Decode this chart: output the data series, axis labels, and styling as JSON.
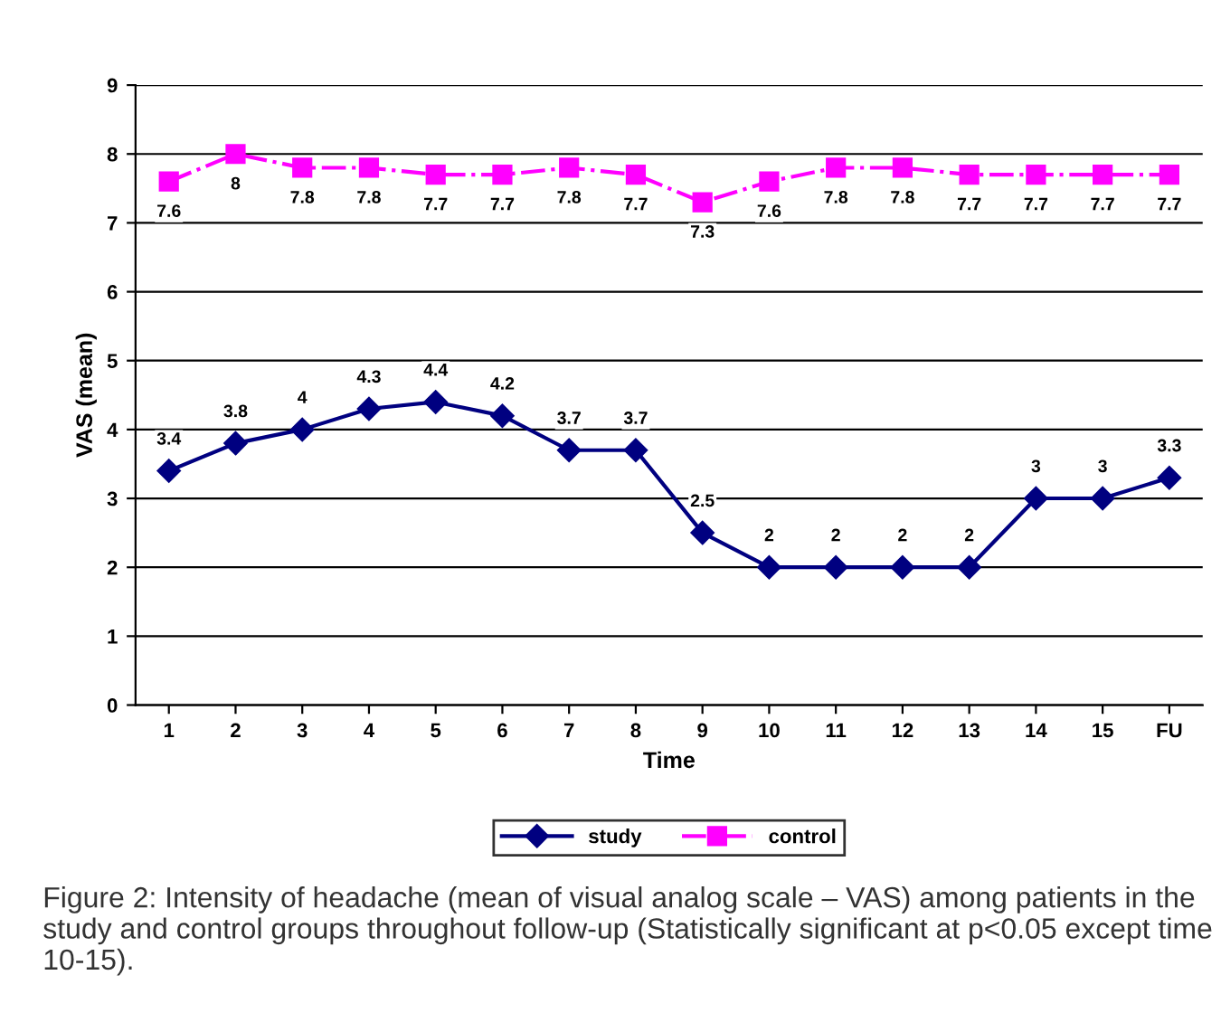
{
  "chart_data": {
    "type": "line",
    "xlabel": "Time",
    "ylabel": "VAS (mean)",
    "categories": [
      "1",
      "2",
      "3",
      "4",
      "5",
      "6",
      "7",
      "8",
      "9",
      "10",
      "11",
      "12",
      "13",
      "14",
      "15",
      "FU"
    ],
    "series": [
      {
        "name": "study",
        "color": "#000080",
        "marker": "diamond",
        "line_style": "solid",
        "values": [
          3.4,
          3.8,
          4,
          4.3,
          4.4,
          4.2,
          3.7,
          3.7,
          2.5,
          2,
          2,
          2,
          2,
          3,
          3,
          3.3
        ]
      },
      {
        "name": "control",
        "color": "#ff00ff",
        "marker": "square",
        "line_style": "dashed",
        "values": [
          7.6,
          8,
          7.8,
          7.8,
          7.7,
          7.7,
          7.8,
          7.7,
          7.3,
          7.6,
          7.8,
          7.8,
          7.7,
          7.7,
          7.7,
          7.7
        ]
      }
    ],
    "ylim": [
      0,
      9
    ],
    "yticks": [
      0,
      1,
      2,
      3,
      4,
      5,
      6,
      7,
      8,
      9
    ],
    "grid": "y",
    "legend": "bottom",
    "data_labels": true,
    "annotations": [
      "Figure 2: Intensity of headache (mean of visual analog scale – VAS) among patients in the study and control groups throughout follow-up (Statistically significant at p<0.05 except time 10-15)."
    ]
  }
}
